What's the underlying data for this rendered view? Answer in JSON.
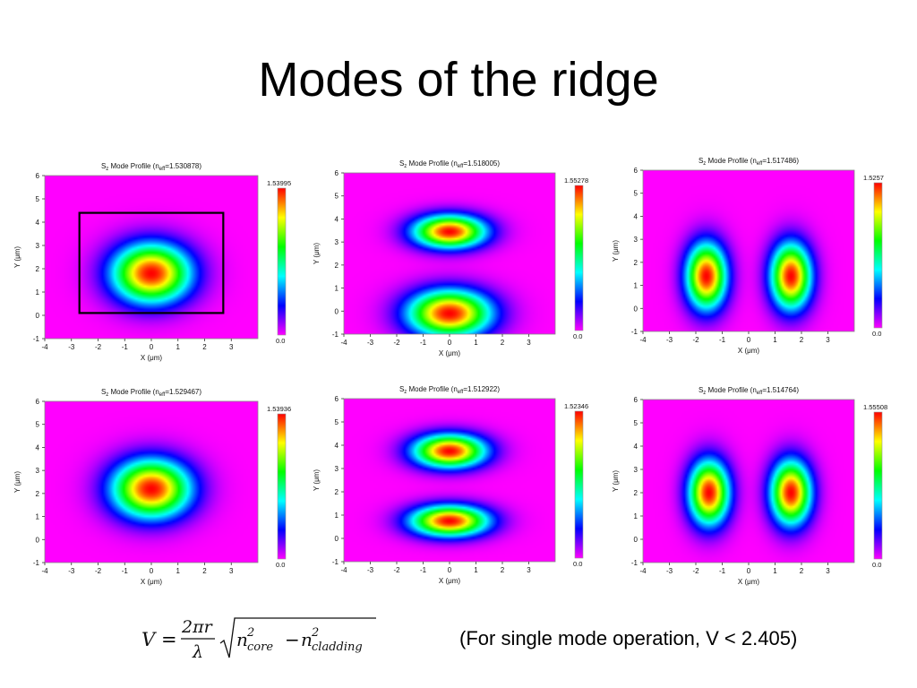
{
  "slide": {
    "title": "Modes of the ridge",
    "note": "(For single mode operation, V < 2.405)"
  },
  "formula": {
    "lhs": "V",
    "equals": "=",
    "numerator": "2πr",
    "denominator": "λ",
    "term1_base": "n",
    "term1_sup": "2",
    "term1_sub": "core",
    "minus": "−",
    "term2_base": "n",
    "term2_sup": "2",
    "term2_sub": "cladding"
  },
  "common_axes": {
    "xlabel": "X (μm)",
    "ylabel": "Y (μm)",
    "xlim": [
      -4,
      4
    ],
    "ylim": [
      -1,
      6
    ],
    "x_ticks": [
      "-4",
      "-3",
      "-2",
      "-1",
      "0",
      "1",
      "2",
      "3"
    ],
    "y_ticks": [
      "-1",
      "0",
      "1",
      "2",
      "3",
      "4",
      "5",
      "6"
    ],
    "colorbar_min_label": "0.0"
  },
  "chart_data": [
    {
      "type": "heatmap",
      "title_prefix": "S",
      "title_sub": "z",
      "title_main": " Mode Profile (n",
      "title_sub2": "eff",
      "title_suffix": "=1.530878)",
      "colorbar_max": "1.53995",
      "modes": [
        {
          "cx": 0.0,
          "cy": 1.8,
          "sx": 1.45,
          "sy": 1.25
        }
      ],
      "ridge_box": {
        "x": [
          -2.7,
          2.7
        ],
        "y": [
          0.1,
          4.4
        ]
      },
      "xlabel": "X (μm)",
      "ylabel": "Y (μm)"
    },
    {
      "type": "heatmap",
      "title_prefix": "S",
      "title_sub": "z",
      "title_main": " Mode Profile (n",
      "title_sub2": "eff",
      "title_suffix": "=1.518005)",
      "colorbar_max": "1.55278",
      "modes": [
        {
          "cx": 0.0,
          "cy": 3.45,
          "sx": 1.35,
          "sy": 0.7
        },
        {
          "cx": 0.0,
          "cy": -0.1,
          "sx": 1.55,
          "sy": 1.0
        }
      ],
      "xlabel": "X (μm)",
      "ylabel": "Y (μm)"
    },
    {
      "type": "heatmap",
      "title_prefix": "S",
      "title_sub": "z",
      "title_main": " Mode Profile (n",
      "title_sub2": "eff",
      "title_suffix": "=1.517486)",
      "colorbar_max": "1.5257",
      "modes": [
        {
          "cx": -1.6,
          "cy": 1.4,
          "sx": 0.75,
          "sy": 1.4
        },
        {
          "cx": 1.6,
          "cy": 1.4,
          "sx": 0.75,
          "sy": 1.4
        }
      ],
      "xlabel": "X (μm)",
      "ylabel": "Y (μm)"
    },
    {
      "type": "heatmap",
      "title_prefix": "S",
      "title_sub": "z",
      "title_main": " Mode Profile (n",
      "title_sub2": "eff",
      "title_suffix": "=1.529467)",
      "colorbar_max": "1.53936",
      "modes": [
        {
          "cx": 0.0,
          "cy": 2.2,
          "sx": 1.45,
          "sy": 1.25
        }
      ],
      "xlabel": "X (μm)",
      "ylabel": "Y (μm)"
    },
    {
      "type": "heatmap",
      "title_prefix": "S",
      "title_sub": "z",
      "title_main": " Mode Profile (n",
      "title_sub2": "eff",
      "title_suffix": "=1.512922)",
      "colorbar_max": "1.52346",
      "modes": [
        {
          "cx": 0.0,
          "cy": 3.75,
          "sx": 1.35,
          "sy": 0.7
        },
        {
          "cx": 0.0,
          "cy": 0.75,
          "sx": 1.45,
          "sy": 0.65
        }
      ],
      "xlabel": "X (μm)",
      "ylabel": "Y (μm)"
    },
    {
      "type": "heatmap",
      "title_prefix": "S",
      "title_sub": "z",
      "title_main": " Mode Profile (n",
      "title_sub2": "eff",
      "title_suffix": "=1.514764)",
      "colorbar_max": "1.55508",
      "modes": [
        {
          "cx": -1.5,
          "cy": 2.0,
          "sx": 0.75,
          "sy": 1.35
        },
        {
          "cx": 1.6,
          "cy": 2.0,
          "sx": 0.75,
          "sy": 1.35
        }
      ],
      "xlabel": "X (μm)",
      "ylabel": "Y (μm)"
    }
  ]
}
